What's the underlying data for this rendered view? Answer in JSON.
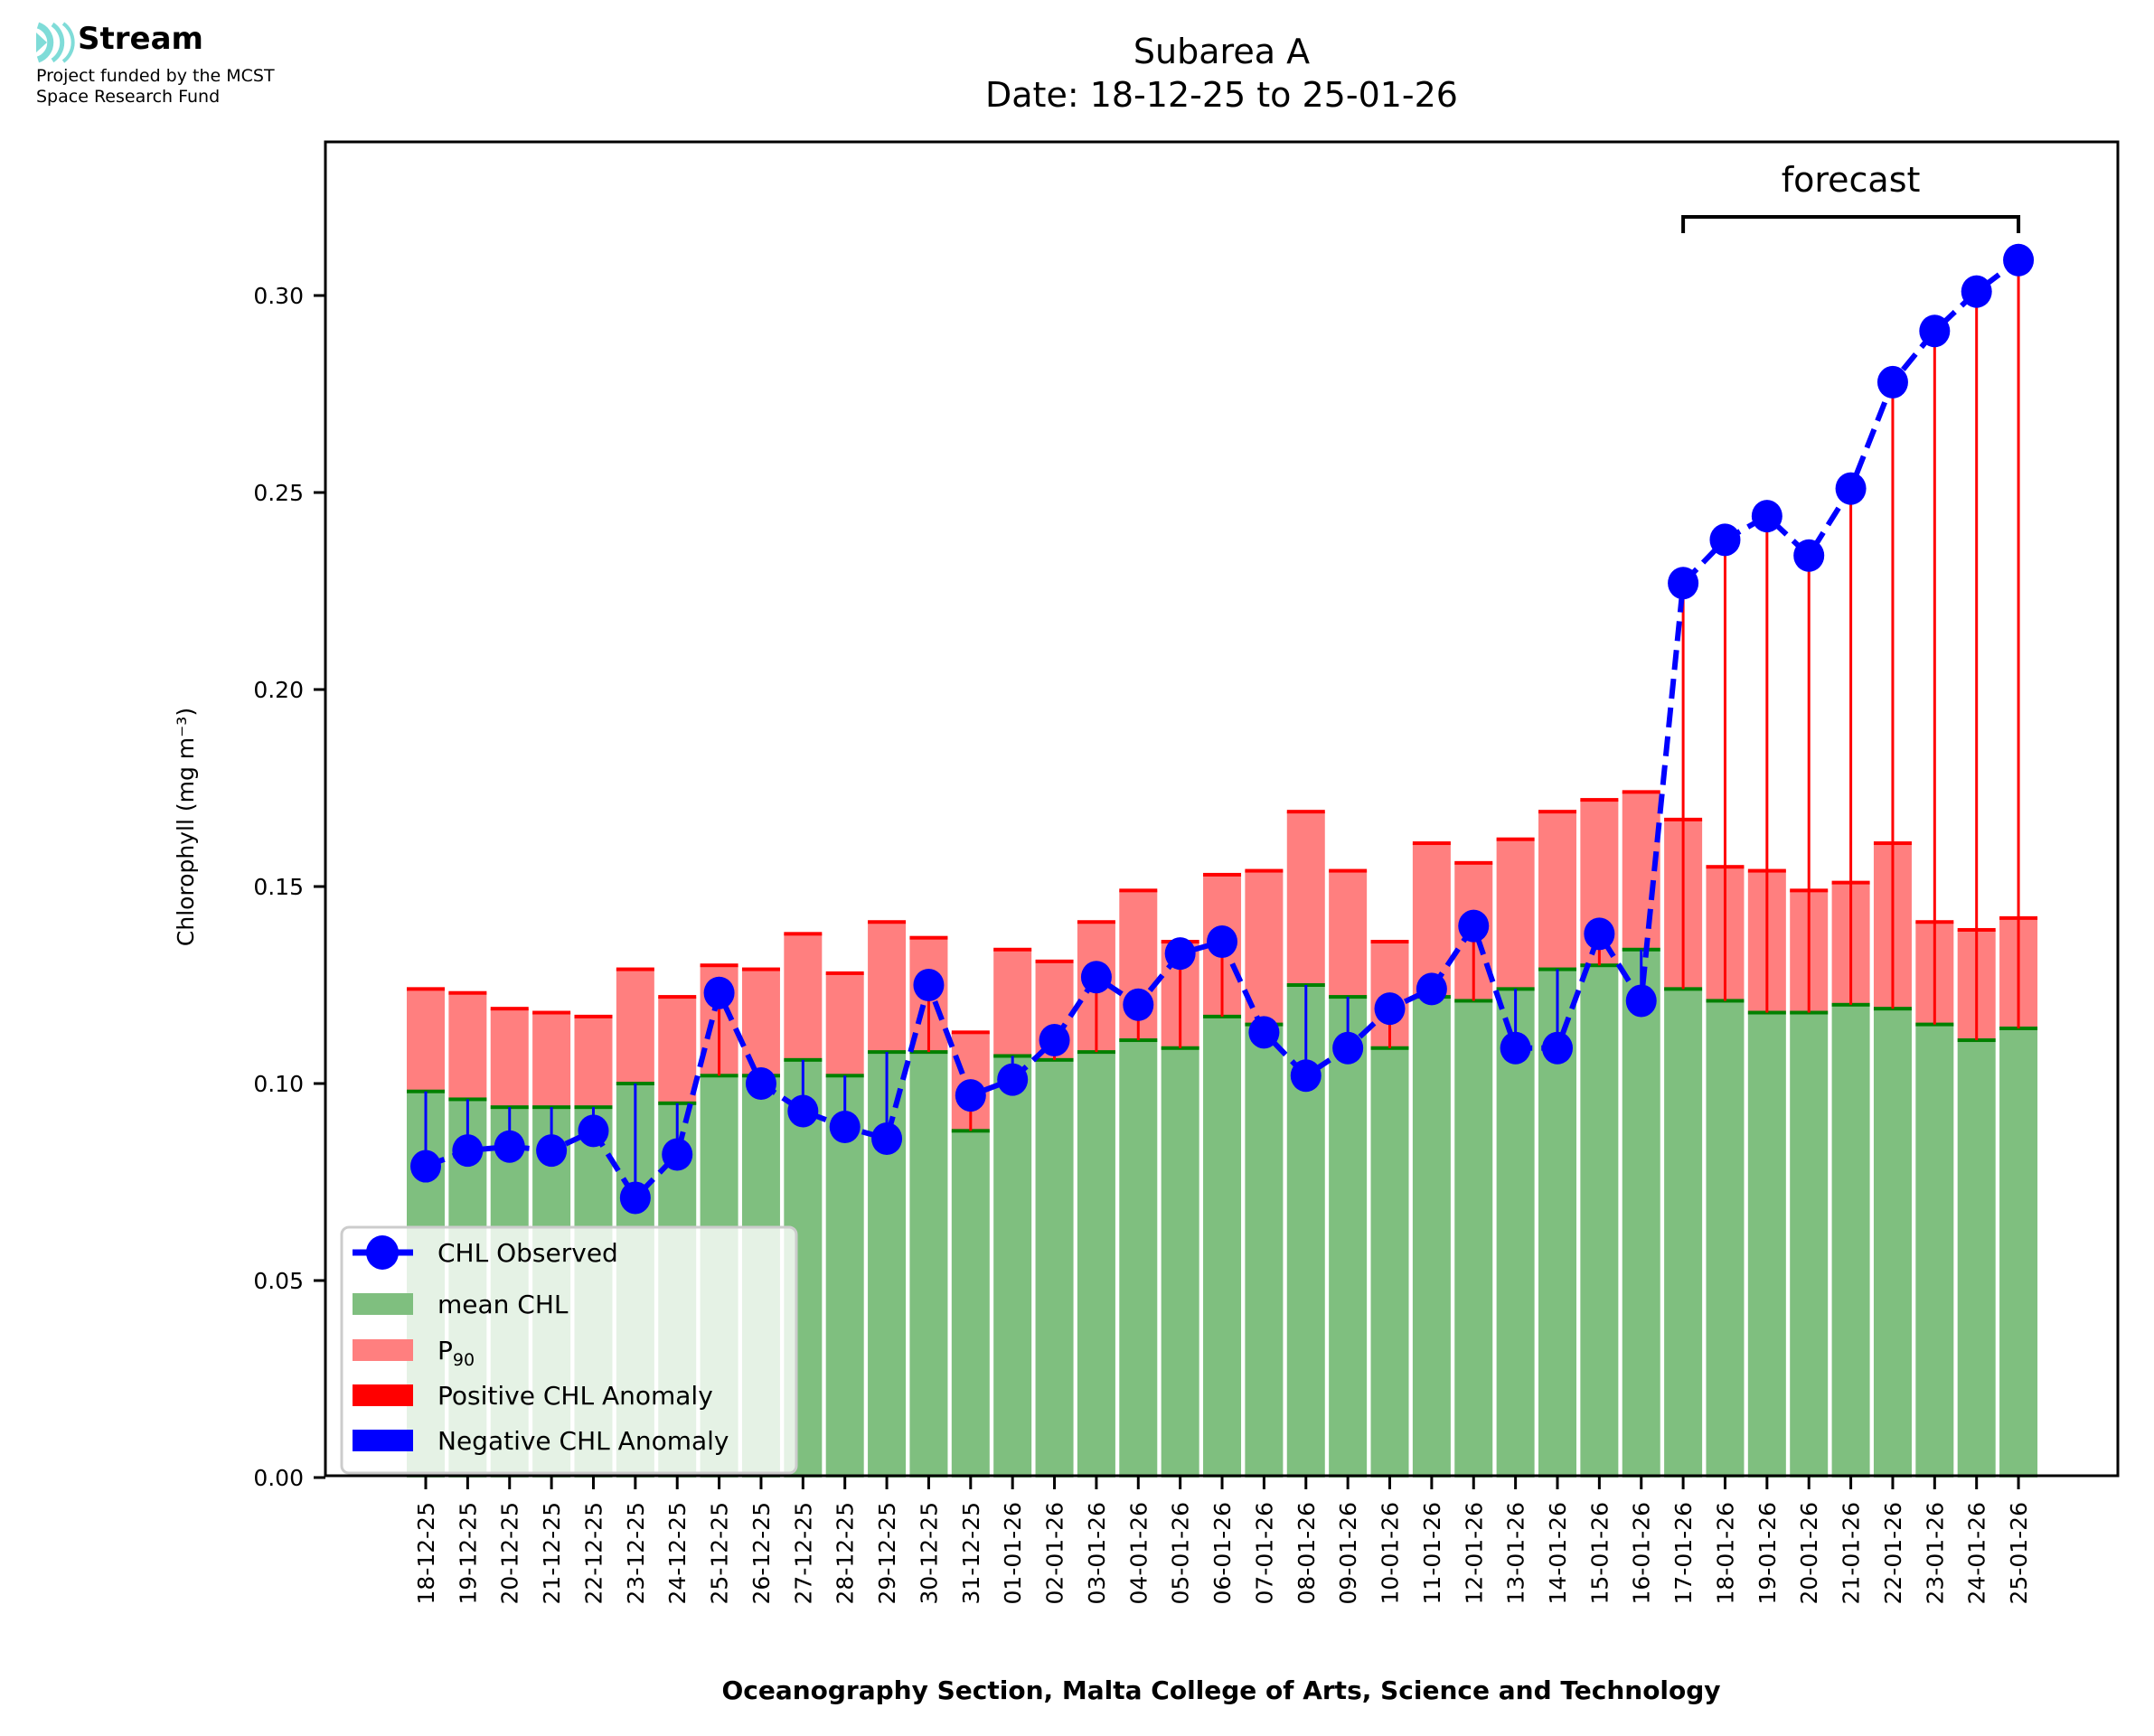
{
  "header": {
    "logo_icon": "stream-waves-icon",
    "logo_name": "Stream",
    "funding_line1": "Project funded by the MCST",
    "funding_line2": "Space Research Fund"
  },
  "colors": {
    "mean": "#7fbf7f",
    "mean_edge": "#008000",
    "p90": "#ff7f7f",
    "p90_edge": "#ff0000",
    "positive_anomaly": "#ff0000",
    "negative_anomaly": "#0000ff",
    "observed": "#0000ff",
    "logo": "#7fdcd8"
  },
  "chart_data": {
    "type": "bar",
    "title": "Subarea A",
    "subtitle": "Date: 18-12-25 to 25-01-26",
    "xlabel": "Oceanography Section, Malta College of Arts, Science and Technology",
    "ylabel": "Chlorophyll (mg m⁻³)",
    "ylim": [
      0,
      0.34
    ],
    "yticks": [
      "0.00",
      "0.05",
      "0.10",
      "0.15",
      "0.20",
      "0.25",
      "0.30"
    ],
    "grid": false,
    "legend_position": "lower-left",
    "legend": [
      {
        "label": "CHL Observed",
        "kind": "line-marker"
      },
      {
        "label": "mean CHL",
        "kind": "patch-mean"
      },
      {
        "label": "P",
        "sub": "90",
        "kind": "patch-p90"
      },
      {
        "label": "Positive CHL Anomaly",
        "kind": "patch-pos"
      },
      {
        "label": "Negative CHL Anomaly",
        "kind": "patch-neg"
      }
    ],
    "annotation": {
      "text": "forecast",
      "from_category": "17-01-26",
      "to_category": "25-01-26"
    },
    "categories": [
      "18-12-25",
      "19-12-25",
      "20-12-25",
      "21-12-25",
      "22-12-25",
      "23-12-25",
      "24-12-25",
      "25-12-25",
      "26-12-25",
      "27-12-25",
      "28-12-25",
      "29-12-25",
      "30-12-25",
      "31-12-25",
      "01-01-26",
      "02-01-26",
      "03-01-26",
      "04-01-26",
      "05-01-26",
      "06-01-26",
      "07-01-26",
      "08-01-26",
      "09-01-26",
      "10-01-26",
      "11-01-26",
      "12-01-26",
      "13-01-26",
      "14-01-26",
      "15-01-26",
      "16-01-26",
      "17-01-26",
      "18-01-26",
      "19-01-26",
      "20-01-26",
      "21-01-26",
      "22-01-26",
      "23-01-26",
      "24-01-26",
      "25-01-26"
    ],
    "series": [
      {
        "name": "mean CHL",
        "type": "bar",
        "values": [
          0.098,
          0.096,
          0.094,
          0.094,
          0.094,
          0.1,
          0.095,
          0.102,
          0.102,
          0.106,
          0.102,
          0.108,
          0.108,
          0.088,
          0.107,
          0.106,
          0.108,
          0.111,
          0.109,
          0.117,
          0.115,
          0.125,
          0.122,
          0.109,
          0.122,
          0.121,
          0.124,
          0.129,
          0.13,
          0.134,
          0.124,
          0.121,
          0.118,
          0.118,
          0.12,
          0.119,
          0.115,
          0.111,
          0.114
        ]
      },
      {
        "name": "P90",
        "type": "bar-stacked-top",
        "values": [
          0.124,
          0.123,
          0.119,
          0.118,
          0.117,
          0.129,
          0.122,
          0.13,
          0.129,
          0.138,
          0.128,
          0.141,
          0.137,
          0.113,
          0.134,
          0.131,
          0.141,
          0.149,
          0.136,
          0.153,
          0.154,
          0.169,
          0.154,
          0.136,
          0.161,
          0.156,
          0.162,
          0.169,
          0.172,
          0.174,
          0.167,
          0.155,
          0.154,
          0.149,
          0.151,
          0.161,
          0.141,
          0.139,
          0.142
        ]
      },
      {
        "name": "CHL Observed",
        "type": "line-dashed-marker",
        "values": [
          0.079,
          0.083,
          0.084,
          0.083,
          0.088,
          0.071,
          0.082,
          0.123,
          0.1,
          0.093,
          0.089,
          0.086,
          0.125,
          0.097,
          0.101,
          0.111,
          0.127,
          0.12,
          0.133,
          0.136,
          0.113,
          0.102,
          0.109,
          0.119,
          0.124,
          0.14,
          0.109,
          0.109,
          0.138,
          0.121,
          0.227,
          0.238,
          0.244,
          0.234,
          0.251,
          0.278,
          0.291,
          0.301,
          0.309
        ]
      }
    ]
  }
}
